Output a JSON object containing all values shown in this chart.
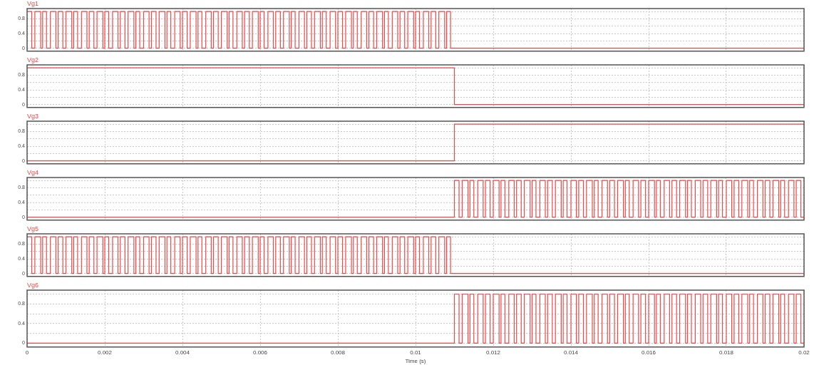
{
  "chart_data": [
    {
      "type": "step",
      "title": "Vg1",
      "xlim": [
        0,
        0.02
      ],
      "ylim": [
        -0.08,
        1.08
      ],
      "xticks": [
        0,
        0.002,
        0.004,
        0.006,
        0.008,
        0.01,
        0.012,
        0.014,
        0.016,
        0.018,
        0.02
      ],
      "yticks": [
        0,
        {
          "value": 0.2,
          "label": null
        },
        0.4,
        {
          "value": 0.6,
          "label": null
        },
        0.8,
        {
          "value": 1,
          "label": null
        }
      ],
      "grid": true,
      "legend": false,
      "tick_labels": "y",
      "series": [
        {
          "color": "#f04848",
          "x": [
            0,
            0.00012,
            0.0002,
            0.00035,
            0.0004,
            0.0005,
            0.0006,
            0.00074,
            0.0008,
            0.00092,
            0.001,
            0.00115,
            0.0012,
            0.0013,
            0.0014,
            0.00154,
            0.0016,
            0.00172,
            0.0018,
            0.00195,
            0.002,
            0.0021,
            0.0022,
            0.00234,
            0.0024,
            0.00252,
            0.0026,
            0.00275,
            0.0028,
            0.0029,
            0.003,
            0.00314,
            0.0032,
            0.00332,
            0.0034,
            0.00355,
            0.0036,
            0.0037,
            0.0038,
            0.00394,
            0.004,
            0.00412,
            0.0042,
            0.00435,
            0.0044,
            0.0045,
            0.0046,
            0.00474,
            0.0048,
            0.00492,
            0.005,
            0.00515,
            0.0052,
            0.0053,
            0.0054,
            0.00554,
            0.0056,
            0.00572,
            0.0058,
            0.00595,
            0.006,
            0.0061,
            0.0062,
            0.00634,
            0.0064,
            0.00652,
            0.0066,
            0.00675,
            0.0068,
            0.0069,
            0.007,
            0.00714,
            0.0072,
            0.00732,
            0.0074,
            0.00755,
            0.0076,
            0.0077,
            0.0078,
            0.00794,
            0.008,
            0.00812,
            0.0082,
            0.00835,
            0.0084,
            0.0085,
            0.0086,
            0.00874,
            0.0088,
            0.00892,
            0.009,
            0.00915,
            0.0092,
            0.0093,
            0.0094,
            0.00954,
            0.0096,
            0.00972,
            0.0098,
            0.00995,
            0.01,
            0.0101,
            0.0102,
            0.01034,
            0.0104,
            0.01052,
            0.0106,
            0.01075,
            0.0108,
            0.0109,
            0.02
          ],
          "values": [
            1,
            1,
            0,
            1,
            0,
            1,
            0,
            1,
            0,
            1,
            0,
            1,
            0,
            1,
            0,
            1,
            0,
            1,
            0,
            1,
            0,
            1,
            0,
            1,
            0,
            1,
            0,
            1,
            0,
            1,
            0,
            1,
            0,
            1,
            0,
            1,
            0,
            1,
            0,
            1,
            0,
            1,
            0,
            1,
            0,
            1,
            0,
            1,
            0,
            1,
            0,
            1,
            0,
            1,
            0,
            1,
            0,
            1,
            0,
            1,
            0,
            1,
            0,
            1,
            0,
            1,
            0,
            1,
            0,
            1,
            0,
            1,
            0,
            1,
            0,
            1,
            0,
            1,
            0,
            1,
            0,
            1,
            0,
            1,
            0,
            1,
            0,
            1,
            0,
            1,
            0,
            1,
            0,
            1,
            0,
            1,
            0,
            1,
            0,
            1,
            0,
            1,
            0,
            1,
            0,
            1,
            0,
            1,
            0,
            1,
            0
          ]
        }
      ]
    },
    {
      "type": "step",
      "title": "Vg2",
      "xlim": [
        0,
        0.02
      ],
      "ylim": [
        -0.08,
        1.08
      ],
      "xticks": [
        0,
        0.002,
        0.004,
        0.006,
        0.008,
        0.01,
        0.012,
        0.014,
        0.016,
        0.018,
        0.02
      ],
      "yticks": [
        0,
        {
          "value": 0.2,
          "label": null
        },
        0.4,
        {
          "value": 0.6,
          "label": null
        },
        0.8,
        {
          "value": 1,
          "label": null
        }
      ],
      "grid": true,
      "legend": false,
      "tick_labels": "y",
      "series": [
        {
          "color": "#f04848",
          "x": [
            0,
            0.011,
            0.02
          ],
          "values": [
            1,
            1,
            0
          ]
        }
      ]
    },
    {
      "type": "step",
      "title": "Vg3",
      "xlim": [
        0,
        0.02
      ],
      "ylim": [
        -0.08,
        1.08
      ],
      "xticks": [
        0,
        0.002,
        0.004,
        0.006,
        0.008,
        0.01,
        0.012,
        0.014,
        0.016,
        0.018,
        0.02
      ],
      "yticks": [
        0,
        {
          "value": 0.2,
          "label": null
        },
        0.4,
        {
          "value": 0.6,
          "label": null
        },
        0.8,
        {
          "value": 1,
          "label": null
        }
      ],
      "grid": true,
      "legend": false,
      "tick_labels": "y",
      "series": [
        {
          "color": "#f04848",
          "x": [
            0,
            0.011,
            0.02
          ],
          "values": [
            0,
            0,
            1
          ]
        }
      ]
    },
    {
      "type": "step",
      "title": "Vg4",
      "xlim": [
        0,
        0.02
      ],
      "ylim": [
        -0.08,
        1.08
      ],
      "xticks": [
        0,
        0.002,
        0.004,
        0.006,
        0.008,
        0.01,
        0.012,
        0.014,
        0.016,
        0.018,
        0.02
      ],
      "yticks": [
        0,
        {
          "value": 0.2,
          "label": null
        },
        0.4,
        {
          "value": 0.6,
          "label": null
        },
        0.8,
        {
          "value": 1,
          "label": null
        }
      ],
      "grid": true,
      "legend": false,
      "tick_labels": "y",
      "series": [
        {
          "color": "#f04848",
          "x": [
            0,
            0.011,
            0.01112,
            0.0112,
            0.01135,
            0.0114,
            0.0115,
            0.0116,
            0.01174,
            0.0118,
            0.01192,
            0.012,
            0.01215,
            0.0122,
            0.0123,
            0.0124,
            0.01254,
            0.0126,
            0.01272,
            0.0128,
            0.01295,
            0.013,
            0.0131,
            0.0132,
            0.01334,
            0.0134,
            0.01352,
            0.0136,
            0.01375,
            0.0138,
            0.0139,
            0.014,
            0.01414,
            0.0142,
            0.01432,
            0.0144,
            0.01455,
            0.0146,
            0.0147,
            0.0148,
            0.01494,
            0.015,
            0.01512,
            0.0152,
            0.01535,
            0.0154,
            0.0155,
            0.0156,
            0.01574,
            0.0158,
            0.01592,
            0.016,
            0.01615,
            0.0162,
            0.0163,
            0.0164,
            0.01654,
            0.0166,
            0.01672,
            0.0168,
            0.01695,
            0.017,
            0.0171,
            0.0172,
            0.01734,
            0.0174,
            0.01752,
            0.0176,
            0.01775,
            0.0178,
            0.0179,
            0.018,
            0.01814,
            0.0182,
            0.01832,
            0.0184,
            0.01855,
            0.0186,
            0.0187,
            0.0188,
            0.01894,
            0.019,
            0.01912,
            0.0192,
            0.01935,
            0.0194,
            0.0195,
            0.0196,
            0.01974,
            0.0198,
            0.01992,
            0.02
          ],
          "values": [
            0,
            0,
            1,
            0,
            1,
            0,
            1,
            0,
            1,
            0,
            1,
            0,
            1,
            0,
            1,
            0,
            1,
            0,
            1,
            0,
            1,
            0,
            1,
            0,
            1,
            0,
            1,
            0,
            1,
            0,
            1,
            0,
            1,
            0,
            1,
            0,
            1,
            0,
            1,
            0,
            1,
            0,
            1,
            0,
            1,
            0,
            1,
            0,
            1,
            0,
            1,
            0,
            1,
            0,
            1,
            0,
            1,
            0,
            1,
            0,
            1,
            0,
            1,
            0,
            1,
            0,
            1,
            0,
            1,
            0,
            1,
            0,
            1,
            0,
            1,
            0,
            1,
            0,
            1,
            0,
            1,
            0,
            1,
            0,
            1,
            0,
            1,
            0,
            1,
            0,
            1,
            0
          ]
        }
      ]
    },
    {
      "type": "step",
      "title": "Vg5",
      "xlim": [
        0,
        0.02
      ],
      "ylim": [
        -0.08,
        1.08
      ],
      "xticks": [
        0,
        0.002,
        0.004,
        0.006,
        0.008,
        0.01,
        0.012,
        0.014,
        0.016,
        0.018,
        0.02
      ],
      "yticks": [
        0,
        {
          "value": 0.2,
          "label": null
        },
        0.4,
        {
          "value": 0.6,
          "label": null
        },
        0.8,
        {
          "value": 1,
          "label": null
        }
      ],
      "grid": true,
      "legend": false,
      "tick_labels": "y",
      "series": [
        {
          "color": "#f04848",
          "x": [
            0,
            0.00012,
            0.0002,
            0.00035,
            0.0004,
            0.0005,
            0.0006,
            0.00074,
            0.0008,
            0.00092,
            0.001,
            0.00115,
            0.0012,
            0.0013,
            0.0014,
            0.00154,
            0.0016,
            0.00172,
            0.0018,
            0.00195,
            0.002,
            0.0021,
            0.0022,
            0.00234,
            0.0024,
            0.00252,
            0.0026,
            0.00275,
            0.0028,
            0.0029,
            0.003,
            0.00314,
            0.0032,
            0.00332,
            0.0034,
            0.00355,
            0.0036,
            0.0037,
            0.0038,
            0.00394,
            0.004,
            0.00412,
            0.0042,
            0.00435,
            0.0044,
            0.0045,
            0.0046,
            0.00474,
            0.0048,
            0.00492,
            0.005,
            0.00515,
            0.0052,
            0.0053,
            0.0054,
            0.00554,
            0.0056,
            0.00572,
            0.0058,
            0.00595,
            0.006,
            0.0061,
            0.0062,
            0.00634,
            0.0064,
            0.00652,
            0.0066,
            0.00675,
            0.0068,
            0.0069,
            0.007,
            0.00714,
            0.0072,
            0.00732,
            0.0074,
            0.00755,
            0.0076,
            0.0077,
            0.0078,
            0.00794,
            0.008,
            0.00812,
            0.0082,
            0.00835,
            0.0084,
            0.0085,
            0.0086,
            0.00874,
            0.0088,
            0.00892,
            0.009,
            0.00915,
            0.0092,
            0.0093,
            0.0094,
            0.00954,
            0.0096,
            0.00972,
            0.0098,
            0.00995,
            0.01,
            0.0101,
            0.0102,
            0.01034,
            0.0104,
            0.01052,
            0.0106,
            0.01075,
            0.0108,
            0.0109,
            0.02
          ],
          "values": [
            1,
            1,
            0,
            1,
            0,
            1,
            0,
            1,
            0,
            1,
            0,
            1,
            0,
            1,
            0,
            1,
            0,
            1,
            0,
            1,
            0,
            1,
            0,
            1,
            0,
            1,
            0,
            1,
            0,
            1,
            0,
            1,
            0,
            1,
            0,
            1,
            0,
            1,
            0,
            1,
            0,
            1,
            0,
            1,
            0,
            1,
            0,
            1,
            0,
            1,
            0,
            1,
            0,
            1,
            0,
            1,
            0,
            1,
            0,
            1,
            0,
            1,
            0,
            1,
            0,
            1,
            0,
            1,
            0,
            1,
            0,
            1,
            0,
            1,
            0,
            1,
            0,
            1,
            0,
            1,
            0,
            1,
            0,
            1,
            0,
            1,
            0,
            1,
            0,
            1,
            0,
            1,
            0,
            1,
            0,
            1,
            0,
            1,
            0,
            1,
            0,
            1,
            0,
            1,
            0,
            1,
            0,
            1,
            0,
            1,
            0
          ]
        }
      ]
    },
    {
      "type": "step",
      "title": "Vg6",
      "xlabel": "Time (s)",
      "xlim": [
        0,
        0.02
      ],
      "ylim": [
        -0.08,
        1.08
      ],
      "xticks": [
        0,
        0.002,
        0.004,
        0.006,
        0.008,
        0.01,
        0.012,
        0.014,
        0.016,
        0.018,
        0.02
      ],
      "yticks": [
        0,
        {
          "value": 0.2,
          "label": null
        },
        0.4,
        {
          "value": 0.6,
          "label": null
        },
        0.8,
        {
          "value": 1,
          "label": null
        }
      ],
      "grid": true,
      "legend": false,
      "series": [
        {
          "color": "#f04848",
          "x": [
            0,
            0.011,
            0.01112,
            0.0112,
            0.01135,
            0.0114,
            0.0115,
            0.0116,
            0.01174,
            0.0118,
            0.01192,
            0.012,
            0.01215,
            0.0122,
            0.0123,
            0.0124,
            0.01254,
            0.0126,
            0.01272,
            0.0128,
            0.01295,
            0.013,
            0.0131,
            0.0132,
            0.01334,
            0.0134,
            0.01352,
            0.0136,
            0.01375,
            0.0138,
            0.0139,
            0.014,
            0.01414,
            0.0142,
            0.01432,
            0.0144,
            0.01455,
            0.0146,
            0.0147,
            0.0148,
            0.01494,
            0.015,
            0.01512,
            0.0152,
            0.01535,
            0.0154,
            0.0155,
            0.0156,
            0.01574,
            0.0158,
            0.01592,
            0.016,
            0.01615,
            0.0162,
            0.0163,
            0.0164,
            0.01654,
            0.0166,
            0.01672,
            0.0168,
            0.01695,
            0.017,
            0.0171,
            0.0172,
            0.01734,
            0.0174,
            0.01752,
            0.0176,
            0.01775,
            0.0178,
            0.0179,
            0.018,
            0.01814,
            0.0182,
            0.01832,
            0.0184,
            0.01855,
            0.0186,
            0.0187,
            0.0188,
            0.01894,
            0.019,
            0.01912,
            0.0192,
            0.01935,
            0.0194,
            0.0195,
            0.0196,
            0.01974,
            0.0198,
            0.01992,
            0.02
          ],
          "values": [
            0,
            0,
            1,
            0,
            1,
            0,
            1,
            0,
            1,
            0,
            1,
            0,
            1,
            0,
            1,
            0,
            1,
            0,
            1,
            0,
            1,
            0,
            1,
            0,
            1,
            0,
            1,
            0,
            1,
            0,
            1,
            0,
            1,
            0,
            1,
            0,
            1,
            0,
            1,
            0,
            1,
            0,
            1,
            0,
            1,
            0,
            1,
            0,
            1,
            0,
            1,
            0,
            1,
            0,
            1,
            0,
            1,
            0,
            1,
            0,
            1,
            0,
            1,
            0,
            1,
            0,
            1,
            0,
            1,
            0,
            1,
            0,
            1,
            0,
            1,
            0,
            1,
            0,
            1,
            0,
            1,
            0,
            1,
            0,
            1,
            0,
            1,
            0,
            1,
            0,
            1,
            0
          ]
        }
      ]
    }
  ]
}
